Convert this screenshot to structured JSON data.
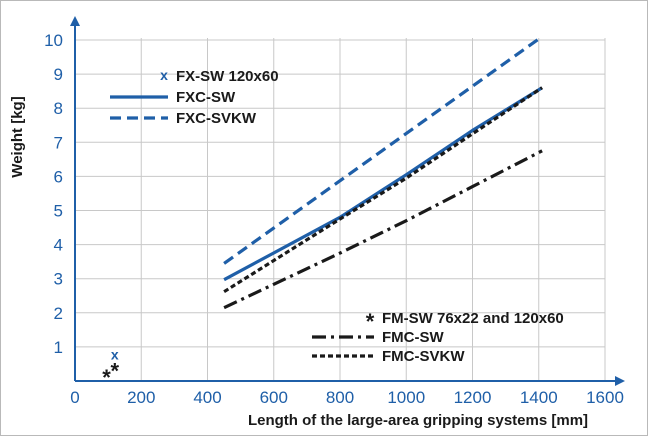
{
  "chart_data": {
    "type": "line",
    "xlabel": "Length of the large-area gripping systems [mm]",
    "ylabel": "Weight [kg]",
    "xlim": [
      0,
      1600
    ],
    "ylim": [
      0,
      10
    ],
    "x_ticks": [
      "0",
      "200",
      "400",
      "600",
      "800",
      "1000",
      "1200",
      "1400",
      "1600"
    ],
    "y_ticks": [
      "1",
      "2",
      "3",
      "4",
      "5",
      "6",
      "7",
      "8",
      "9",
      "10"
    ],
    "grid": true,
    "colors": {
      "blue": "#1f5fa8",
      "black": "#1a1a1a",
      "grid": "#c8c8c8"
    },
    "series": [
      {
        "name": "FXC-SW",
        "color": "#1f5fa8",
        "dash": "solid",
        "marker": "none",
        "x": [
          450,
          800,
          1000,
          1200,
          1410
        ],
        "y": [
          2.97,
          4.8,
          6.05,
          7.35,
          8.6
        ]
      },
      {
        "name": "FXC-SVKW",
        "color": "#1f5fa8",
        "dash": "dash",
        "marker": "none",
        "x": [
          450,
          1410
        ],
        "y": [
          3.45,
          10.1
        ]
      },
      {
        "name": "FMC-SW",
        "color": "#1a1a1a",
        "dash": "dashdot",
        "marker": "none",
        "x": [
          450,
          800,
          1000,
          1200,
          1410
        ],
        "y": [
          2.15,
          3.75,
          4.7,
          5.7,
          6.75
        ]
      },
      {
        "name": "FMC-SVKW",
        "color": "#1a1a1a",
        "dash": "dot",
        "marker": "none",
        "x": [
          450,
          800,
          1000,
          1200,
          1410
        ],
        "y": [
          2.62,
          4.75,
          5.95,
          7.25,
          8.6
        ]
      },
      {
        "name": "FX-SW 120x60",
        "color": "#1f5fa8",
        "marker": "x",
        "x": [
          120
        ],
        "y": [
          0.75
        ]
      },
      {
        "name": "FM-SW 76x22 and 120x60",
        "color": "#1a1a1a",
        "marker": "*",
        "x": [
          95,
          120
        ],
        "y": [
          0.2,
          0.4
        ]
      }
    ],
    "legends": [
      {
        "placement": "top-left",
        "entries": [
          "FX-SW 120x60",
          "FXC-SW",
          "FXC-SVKW"
        ]
      },
      {
        "placement": "bottom-right",
        "entries": [
          "FM-SW 76x22 and 120x60",
          "FMC-SW",
          "FMC-SVKW"
        ]
      }
    ]
  }
}
